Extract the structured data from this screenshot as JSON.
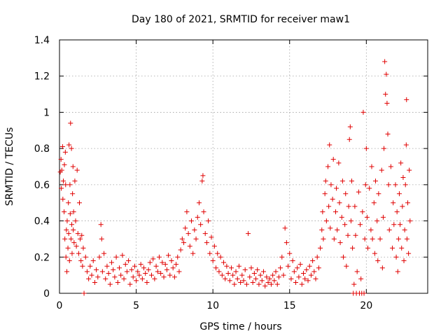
{
  "chart_data": {
    "type": "scatter",
    "title": "Day 180 of 2021, SRMTID for receiver maw1",
    "xlabel": "GPS time / hours",
    "ylabel": "SRMTID / TECUs",
    "xlim": [
      0,
      24
    ],
    "ylim": [
      0,
      1.4
    ],
    "xticks": [
      0,
      5,
      10,
      15,
      20
    ],
    "xtick_labels": [
      "0",
      "5",
      "10",
      "15",
      "20"
    ],
    "yticks": [
      0,
      0.2,
      0.4,
      0.6,
      0.8,
      1,
      1.2,
      1.4
    ],
    "ytick_labels": [
      "0",
      "0.2",
      "0.4",
      "0.6",
      "0.8",
      "1",
      "1.2",
      "1.4"
    ],
    "grid": true,
    "marker": "+",
    "color": "#e00000",
    "series": [
      {
        "name": "maw1",
        "points": [
          [
            0.05,
            0.67
          ],
          [
            0.1,
            0.74
          ],
          [
            0.12,
            0.58
          ],
          [
            0.15,
            0.68
          ],
          [
            0.2,
            0.81
          ],
          [
            0.22,
            0.52
          ],
          [
            0.25,
            0.62
          ],
          [
            0.3,
            0.45
          ],
          [
            0.32,
            0.71
          ],
          [
            0.35,
            0.3
          ],
          [
            0.38,
            0.78
          ],
          [
            0.4,
            0.6
          ],
          [
            0.42,
            0.2
          ],
          [
            0.45,
            0.35
          ],
          [
            0.48,
            0.12
          ],
          [
            0.5,
            0.4
          ],
          [
            0.55,
            0.25
          ],
          [
            0.58,
            0.5
          ],
          [
            0.6,
            0.33
          ],
          [
            0.62,
            0.82
          ],
          [
            0.65,
            0.18
          ],
          [
            0.68,
            0.6
          ],
          [
            0.7,
            0.44
          ],
          [
            0.72,
            0.94
          ],
          [
            0.75,
            0.3
          ],
          [
            0.78,
            0.8
          ],
          [
            0.8,
            0.38
          ],
          [
            0.82,
            0.22
          ],
          [
            0.85,
            0.55
          ],
          [
            0.88,
            0.7
          ],
          [
            0.9,
            0.35
          ],
          [
            0.92,
            0.45
          ],
          [
            0.95,
            0.28
          ],
          [
            1.0,
            0.62
          ],
          [
            1.05,
            0.4
          ],
          [
            1.1,
            0.26
          ],
          [
            1.15,
            0.68
          ],
          [
            1.2,
            0.33
          ],
          [
            1.25,
            0.22
          ],
          [
            1.3,
            0.5
          ],
          [
            1.35,
            0.3
          ],
          [
            1.4,
            0.18
          ],
          [
            1.45,
            0.32
          ],
          [
            1.5,
            0.15
          ],
          [
            1.55,
            0.25
          ],
          [
            1.6,
            0.0
          ],
          [
            1.7,
            0.2
          ],
          [
            1.8,
            0.12
          ],
          [
            1.9,
            0.08
          ],
          [
            2.0,
            0.15
          ],
          [
            2.1,
            0.1
          ],
          [
            2.2,
            0.18
          ],
          [
            2.3,
            0.06
          ],
          [
            2.4,
            0.13
          ],
          [
            2.5,
            0.09
          ],
          [
            2.6,
            0.2
          ],
          [
            2.7,
            0.38
          ],
          [
            2.75,
            0.3
          ],
          [
            2.8,
            0.12
          ],
          [
            2.9,
            0.22
          ],
          [
            3.0,
            0.08
          ],
          [
            3.1,
            0.15
          ],
          [
            3.2,
            0.11
          ],
          [
            3.3,
            0.05
          ],
          [
            3.4,
            0.17
          ],
          [
            3.5,
            0.13
          ],
          [
            3.6,
            0.09
          ],
          [
            3.7,
            0.2
          ],
          [
            3.8,
            0.06
          ],
          [
            3.9,
            0.14
          ],
          [
            4.0,
            0.1
          ],
          [
            4.1,
            0.21
          ],
          [
            4.2,
            0.08
          ],
          [
            4.3,
            0.16
          ],
          [
            4.4,
            0.12
          ],
          [
            4.5,
            0.18
          ],
          [
            4.6,
            0.05
          ],
          [
            4.7,
            0.13
          ],
          [
            4.8,
            0.09
          ],
          [
            4.9,
            0.15
          ],
          [
            5.0,
            0.07
          ],
          [
            5.1,
            0.12
          ],
          [
            5.2,
            0.1
          ],
          [
            5.3,
            0.16
          ],
          [
            5.4,
            0.08
          ],
          [
            5.5,
            0.14
          ],
          [
            5.6,
            0.11
          ],
          [
            5.7,
            0.06
          ],
          [
            5.8,
            0.13
          ],
          [
            5.9,
            0.17
          ],
          [
            6.0,
            0.1
          ],
          [
            6.1,
            0.19
          ],
          [
            6.2,
            0.08
          ],
          [
            6.3,
            0.15
          ],
          [
            6.4,
            0.12
          ],
          [
            6.5,
            0.2
          ],
          [
            6.6,
            0.11
          ],
          [
            6.7,
            0.17
          ],
          [
            6.8,
            0.09
          ],
          [
            6.9,
            0.16
          ],
          [
            7.0,
            0.13
          ],
          [
            7.1,
            0.21
          ],
          [
            7.2,
            0.1
          ],
          [
            7.3,
            0.18
          ],
          [
            7.4,
            0.14
          ],
          [
            7.5,
            0.09
          ],
          [
            7.6,
            0.16
          ],
          [
            7.7,
            0.2
          ],
          [
            7.8,
            0.12
          ],
          [
            7.9,
            0.24
          ],
          [
            8.0,
            0.3
          ],
          [
            8.1,
            0.28
          ],
          [
            8.2,
            0.36
          ],
          [
            8.3,
            0.45
          ],
          [
            8.4,
            0.33
          ],
          [
            8.5,
            0.26
          ],
          [
            8.6,
            0.4
          ],
          [
            8.7,
            0.22
          ],
          [
            8.8,
            0.35
          ],
          [
            8.9,
            0.3
          ],
          [
            9.0,
            0.42
          ],
          [
            9.1,
            0.5
          ],
          [
            9.2,
            0.38
          ],
          [
            9.3,
            0.62
          ],
          [
            9.35,
            0.65
          ],
          [
            9.4,
            0.45
          ],
          [
            9.5,
            0.33
          ],
          [
            9.6,
            0.28
          ],
          [
            9.7,
            0.4
          ],
          [
            9.8,
            0.22
          ],
          [
            9.9,
            0.31
          ],
          [
            10.0,
            0.18
          ],
          [
            10.1,
            0.26
          ],
          [
            10.2,
            0.14
          ],
          [
            10.3,
            0.22
          ],
          [
            10.4,
            0.12
          ],
          [
            10.5,
            0.2
          ],
          [
            10.6,
            0.1
          ],
          [
            10.7,
            0.17
          ],
          [
            10.8,
            0.08
          ],
          [
            10.9,
            0.15
          ],
          [
            11.0,
            0.11
          ],
          [
            11.1,
            0.07
          ],
          [
            11.2,
            0.14
          ],
          [
            11.3,
            0.1
          ],
          [
            11.4,
            0.05
          ],
          [
            11.5,
            0.12
          ],
          [
            11.6,
            0.08
          ],
          [
            11.7,
            0.15
          ],
          [
            11.8,
            0.06
          ],
          [
            11.9,
            0.1
          ],
          [
            12.0,
            0.07
          ],
          [
            12.1,
            0.13
          ],
          [
            12.2,
            0.05
          ],
          [
            12.3,
            0.33
          ],
          [
            12.4,
            0.09
          ],
          [
            12.5,
            0.14
          ],
          [
            12.6,
            0.06
          ],
          [
            12.7,
            0.11
          ],
          [
            12.8,
            0.08
          ],
          [
            12.9,
            0.13
          ],
          [
            13.0,
            0.05
          ],
          [
            13.1,
            0.1
          ],
          [
            13.2,
            0.07
          ],
          [
            13.3,
            0.12
          ],
          [
            13.4,
            0.04
          ],
          [
            13.5,
            0.09
          ],
          [
            13.6,
            0.06
          ],
          [
            13.7,
            0.08
          ],
          [
            13.8,
            0.05
          ],
          [
            13.9,
            0.1
          ],
          [
            14.0,
            0.07
          ],
          [
            14.1,
            0.12
          ],
          [
            14.2,
            0.05
          ],
          [
            14.3,
            0.09
          ],
          [
            14.4,
            0.14
          ],
          [
            14.5,
            0.2
          ],
          [
            14.6,
            0.1
          ],
          [
            14.7,
            0.36
          ],
          [
            14.8,
            0.28
          ],
          [
            14.9,
            0.15
          ],
          [
            15.0,
            0.22
          ],
          [
            15.1,
            0.08
          ],
          [
            15.2,
            0.18
          ],
          [
            15.3,
            0.12
          ],
          [
            15.4,
            0.06
          ],
          [
            15.5,
            0.14
          ],
          [
            15.6,
            0.09
          ],
          [
            15.7,
            0.16
          ],
          [
            15.8,
            0.05
          ],
          [
            15.9,
            0.11
          ],
          [
            16.0,
            0.08
          ],
          [
            16.1,
            0.13
          ],
          [
            16.2,
            0.07
          ],
          [
            16.3,
            0.15
          ],
          [
            16.4,
            0.1
          ],
          [
            16.5,
            0.18
          ],
          [
            16.6,
            0.12
          ],
          [
            16.7,
            0.08
          ],
          [
            16.8,
            0.2
          ],
          [
            16.9,
            0.14
          ],
          [
            17.0,
            0.25
          ],
          [
            17.1,
            0.35
          ],
          [
            17.15,
            0.45
          ],
          [
            17.2,
            0.3
          ],
          [
            17.3,
            0.55
          ],
          [
            17.35,
            0.62
          ],
          [
            17.4,
            0.4
          ],
          [
            17.5,
            0.7
          ],
          [
            17.55,
            0.48
          ],
          [
            17.6,
            0.82
          ],
          [
            17.65,
            0.36
          ],
          [
            17.7,
            0.6
          ],
          [
            17.8,
            0.52
          ],
          [
            17.85,
            0.74
          ],
          [
            17.9,
            0.3
          ],
          [
            18.0,
            0.45
          ],
          [
            18.05,
            0.58
          ],
          [
            18.1,
            0.35
          ],
          [
            18.2,
            0.72
          ],
          [
            18.25,
            0.5
          ],
          [
            18.3,
            0.28
          ],
          [
            18.4,
            0.42
          ],
          [
            18.45,
            0.62
          ],
          [
            18.5,
            0.2
          ],
          [
            18.6,
            0.38
          ],
          [
            18.65,
            0.55
          ],
          [
            18.7,
            0.15
          ],
          [
            18.8,
            0.32
          ],
          [
            18.85,
            0.48
          ],
          [
            18.9,
            0.85
          ],
          [
            18.95,
            0.92
          ],
          [
            19.0,
            0.4
          ],
          [
            19.05,
            0.62
          ],
          [
            19.1,
            0.25
          ],
          [
            19.15,
            0.0
          ],
          [
            19.2,
            0.05
          ],
          [
            19.25,
            0.48
          ],
          [
            19.3,
            0.32
          ],
          [
            19.35,
            0.0
          ],
          [
            19.4,
            0.12
          ],
          [
            19.5,
            0.56
          ],
          [
            19.55,
            0.0
          ],
          [
            19.6,
            0.38
          ],
          [
            19.65,
            0.08
          ],
          [
            19.7,
            0.0
          ],
          [
            19.75,
            0.45
          ],
          [
            19.8,
            1.0
          ],
          [
            19.85,
            0.0
          ],
          [
            19.9,
            0.3
          ],
          [
            19.95,
            0.6
          ],
          [
            20.0,
            0.8
          ],
          [
            20.05,
            0.42
          ],
          [
            20.1,
            0.25
          ],
          [
            20.2,
            0.58
          ],
          [
            20.3,
            0.35
          ],
          [
            20.35,
            0.7
          ],
          [
            20.4,
            0.3
          ],
          [
            20.5,
            0.5
          ],
          [
            20.55,
            0.22
          ],
          [
            20.6,
            0.62
          ],
          [
            20.7,
            0.4
          ],
          [
            20.75,
            0.18
          ],
          [
            20.8,
            0.55
          ],
          [
            20.9,
            0.3
          ],
          [
            21.0,
            0.68
          ],
          [
            21.05,
            0.14
          ],
          [
            21.1,
            0.42
          ],
          [
            21.15,
            0.8
          ],
          [
            21.2,
            1.28
          ],
          [
            21.25,
            1.1
          ],
          [
            21.3,
            1.21
          ],
          [
            21.35,
            1.05
          ],
          [
            21.4,
            0.88
          ],
          [
            21.45,
            0.6
          ],
          [
            21.5,
            0.35
          ],
          [
            21.6,
            0.7
          ],
          [
            21.7,
            0.25
          ],
          [
            21.75,
            0.5
          ],
          [
            21.8,
            0.38
          ],
          [
            21.9,
            0.6
          ],
          [
            21.95,
            0.2
          ],
          [
            22.0,
            0.45
          ],
          [
            22.05,
            0.12
          ],
          [
            22.1,
            0.3
          ],
          [
            22.15,
            0.55
          ],
          [
            22.2,
            0.38
          ],
          [
            22.25,
            0.72
          ],
          [
            22.3,
            0.25
          ],
          [
            22.35,
            0.48
          ],
          [
            22.4,
            0.64
          ],
          [
            22.45,
            0.18
          ],
          [
            22.5,
            0.35
          ],
          [
            22.55,
            0.6
          ],
          [
            22.6,
            0.82
          ],
          [
            22.62,
            1.07
          ],
          [
            22.65,
            0.3
          ],
          [
            22.7,
            0.5
          ],
          [
            22.75,
            0.22
          ],
          [
            22.8,
            0.68
          ],
          [
            22.85,
            0.4
          ]
        ]
      }
    ]
  }
}
